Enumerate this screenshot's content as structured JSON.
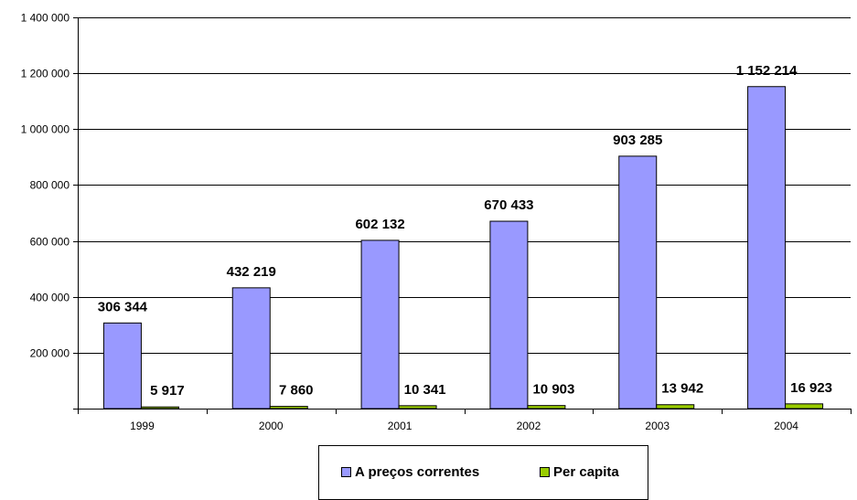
{
  "chart_data": {
    "type": "bar",
    "categories": [
      "1999",
      "2000",
      "2001",
      "2002",
      "2003",
      "2004"
    ],
    "series": [
      {
        "name": "A preços correntes",
        "color": "#9999ff",
        "values": [
          306344,
          432219,
          602132,
          670433,
          903285,
          1152214
        ],
        "labels": [
          "306 344",
          "432 219",
          "602 132",
          "670 433",
          "903 285",
          "1 152 214"
        ]
      },
      {
        "name": "Per capita",
        "color": "#99cc00",
        "values": [
          5917,
          7860,
          10341,
          10903,
          13942,
          16923
        ],
        "labels": [
          "5 917",
          "7 860",
          "10 341",
          "10 903",
          "13 942",
          "16 923"
        ]
      }
    ],
    "ylim": [
      0,
      1400000
    ],
    "yticks": [
      {
        "value": 200000,
        "label": "200 000"
      },
      {
        "value": 400000,
        "label": "400 000"
      },
      {
        "value": 600000,
        "label": "600 000"
      },
      {
        "value": 800000,
        "label": "800 000"
      },
      {
        "value": 1000000,
        "label": "1 000 000"
      },
      {
        "value": 1200000,
        "label": "1 200 000"
      },
      {
        "value": 1400000,
        "label": "1 400 000"
      }
    ],
    "grid": true,
    "legend_position": "bottom"
  }
}
